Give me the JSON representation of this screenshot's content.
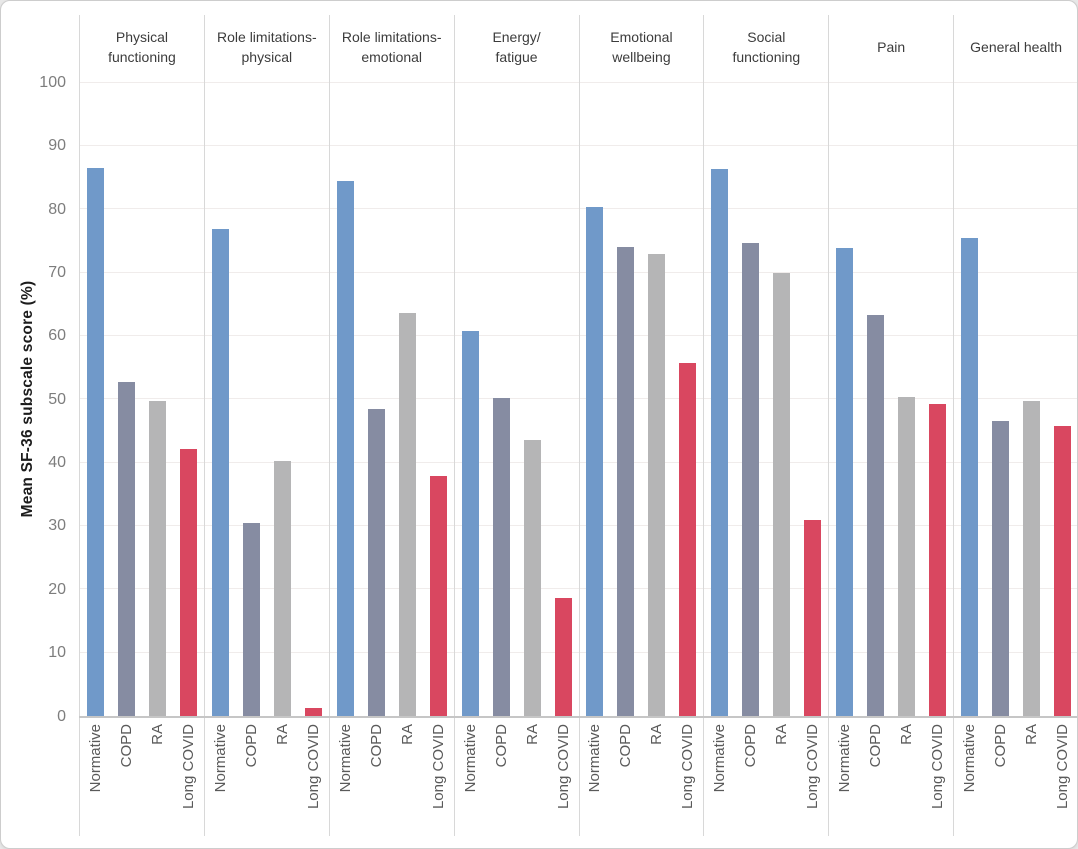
{
  "chart_data": {
    "type": "bar",
    "title": "",
    "ylabel": "Mean SF-36 subscale score (%)",
    "xlabel": "",
    "ylim": [
      0,
      100
    ],
    "yticks": [
      0,
      10,
      20,
      30,
      40,
      50,
      60,
      70,
      80,
      90,
      100
    ],
    "grid": "horizontal light gridlines every 10",
    "legend_position": "none (group names repeated under each panel)",
    "group_labels": [
      "Normative",
      "COPD",
      "RA",
      "Long COVID"
    ],
    "series_colors": {
      "Normative": "#7099c9",
      "COPD": "#868ca2",
      "RA": "#b5b5b6",
      "Long COVID": "#d94760"
    },
    "panels": [
      {
        "title": "Physical\nfunctioning",
        "values": [
          86.5,
          52.7,
          49.8,
          42.2
        ]
      },
      {
        "title": "Role limitations-\nphysical",
        "values": [
          76.9,
          30.4,
          40.3,
          1.3
        ]
      },
      {
        "title": "Role limitations-\nemotional",
        "values": [
          84.4,
          48.4,
          63.6,
          37.9
        ]
      },
      {
        "title": "Energy/\nfatigue",
        "values": [
          60.8,
          50.2,
          43.5,
          18.6
        ]
      },
      {
        "title": "Emotional\nwellbeing",
        "values": [
          80.4,
          74.0,
          73.0,
          55.8
        ]
      },
      {
        "title": "Social\nfunctioning",
        "values": [
          86.3,
          74.6,
          69.9,
          31.0
        ]
      },
      {
        "title": "Pain",
        "values": [
          73.8,
          63.3,
          50.4,
          49.3
        ]
      },
      {
        "title": "General health",
        "values": [
          75.4,
          46.5,
          49.8,
          45.7
        ]
      }
    ]
  },
  "figure": {
    "background": "#ffffff",
    "border_color": "#cdcdcd",
    "gridline_color": "#f0eceb",
    "separator_color": "#d8d8d8",
    "baseline_color": "#c6c6c6"
  }
}
